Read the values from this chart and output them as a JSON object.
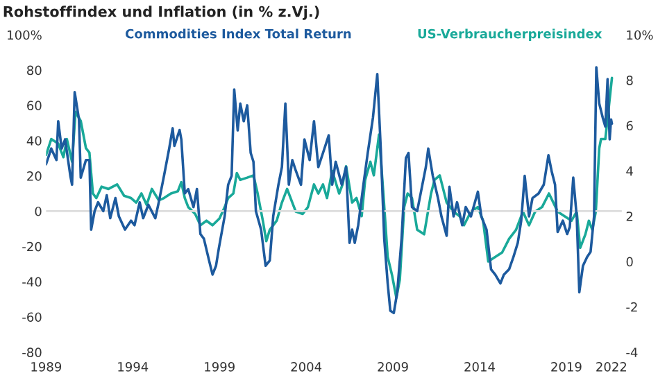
{
  "chart_data": {
    "type": "line",
    "title": "Rohstoffindex und Inflation (in % z.Vj.)",
    "xlim": [
      1989,
      2022.2
    ],
    "xticks": [
      1989,
      1994,
      1999,
      2004,
      2009,
      2014,
      2019,
      {
        "value": 2021.6,
        "label": "2022"
      }
    ],
    "ylim": [
      -80,
      100
    ],
    "yticks": [
      -80,
      -60,
      -40,
      -20,
      0,
      20,
      40,
      60,
      80,
      {
        "value": 100,
        "label": "100%"
      }
    ],
    "y2lim": [
      -4,
      10
    ],
    "y2ticks": [
      -4,
      -2,
      0,
      2,
      4,
      6,
      8,
      {
        "value": 10,
        "label": "10%"
      }
    ],
    "ref_lines": [
      {
        "axis": "y",
        "value": 0,
        "color": "#dcdcdc"
      }
    ],
    "grid": false,
    "series": [
      {
        "name": "Commodities Index Total Return",
        "color": "#1d5a9e",
        "x": [
          1989.0,
          1989.3,
          1989.6,
          1989.7,
          1989.9,
          1990.1,
          1990.4,
          1990.5,
          1990.65,
          1990.9,
          1991.0,
          1991.3,
          1991.5,
          1991.6,
          1991.8,
          1992.0,
          1992.3,
          1992.5,
          1992.7,
          1993.0,
          1993.2,
          1993.55,
          1993.9,
          1994.1,
          1994.4,
          1994.6,
          1994.9,
          1995.3,
          1995.5,
          1995.8,
          1996.1,
          1996.3,
          1996.4,
          1996.7,
          1996.8,
          1997.0,
          1997.2,
          1997.5,
          1997.7,
          1997.9,
          1998.1,
          1998.4,
          1998.6,
          1998.8,
          1998.97,
          1999.3,
          1999.5,
          1999.7,
          1999.85,
          2000.05,
          2000.2,
          2000.4,
          2000.6,
          2000.8,
          2000.96,
          2001.1,
          2001.4,
          2001.66,
          2001.9,
          2002.1,
          2002.4,
          2002.6,
          2002.8,
          2003.0,
          2003.2,
          2003.4,
          2003.7,
          2003.9,
          2004.2,
          2004.45,
          2004.7,
          2004.97,
          2005.3,
          2005.5,
          2005.7,
          2006.05,
          2006.3,
          2006.5,
          2006.65,
          2006.8,
          2007.0,
          2007.3,
          2007.55,
          2007.85,
          2008.1,
          2008.3,
          2008.5,
          2008.7,
          2008.85,
          2009.05,
          2009.25,
          2009.5,
          2009.75,
          2009.9,
          2010.1,
          2010.4,
          2010.6,
          2010.9,
          2011.04,
          2011.3,
          2011.6,
          2011.8,
          2012.1,
          2012.26,
          2012.5,
          2012.7,
          2013.0,
          2013.2,
          2013.5,
          2013.9,
          2014.1,
          2014.4,
          2014.66,
          2014.9,
          2015.2,
          2015.4,
          2015.7,
          2015.95,
          2016.2,
          2016.4,
          2016.6,
          2016.85,
          2017.05,
          2017.4,
          2017.7,
          2017.97,
          2018.15,
          2018.35,
          2018.5,
          2018.8,
          2019.05,
          2019.2,
          2019.4,
          2019.6,
          2019.75,
          2019.96,
          2020.2,
          2020.4,
          2020.6,
          2020.73,
          2020.9,
          2021.1,
          2021.25,
          2021.38,
          2021.5,
          2021.58,
          2021.63
        ],
        "values": [
          26.6,
          35.5,
          29,
          51,
          35.5,
          40.7,
          20,
          15,
          67.5,
          52,
          19,
          29,
          29,
          -10.5,
          0,
          5,
          0,
          9,
          -4,
          7.4,
          -3,
          -10.5,
          -5.4,
          -8,
          5,
          -4,
          3.6,
          -4,
          5,
          20,
          35.5,
          47,
          37,
          46,
          40.7,
          10,
          12.5,
          2.3,
          12.5,
          -13,
          -15.6,
          -28,
          -36,
          -31,
          -20.7,
          -2.8,
          15,
          20,
          69,
          45.8,
          61,
          51,
          60,
          33,
          28,
          0,
          -10.5,
          -31,
          -28,
          -2.8,
          15,
          25,
          61,
          15,
          29,
          23,
          15,
          40.7,
          29,
          51,
          25,
          33,
          43,
          15,
          28,
          15,
          25,
          -18,
          -10.5,
          -18,
          -8,
          15,
          33,
          53,
          77.7,
          35.5,
          -15.6,
          -41,
          -56.5,
          -57.8,
          -46,
          -15.6,
          30,
          33,
          2.3,
          0,
          10,
          25,
          35.5,
          20,
          7.4,
          -3,
          -14,
          13.8,
          -3,
          5,
          -8,
          2.3,
          -3,
          11,
          -3,
          -10.5,
          -33,
          -36,
          -41,
          -36,
          -33,
          -26,
          -18,
          -5.4,
          20,
          -3,
          7.4,
          10,
          15,
          31.7,
          22.8,
          15,
          -11.8,
          -5.4,
          -13,
          -9,
          19,
          -3,
          -46,
          -31,
          -26,
          -23,
          -3,
          81.6,
          61,
          53,
          48,
          74.9,
          40.7,
          52,
          49.6
        ]
      },
      {
        "name": "US-Verbraucherpreisindex",
        "color": "#19a999",
        "axis": "y2",
        "x": [
          1989.0,
          1989.3,
          1989.7,
          1990.0,
          1990.2,
          1990.5,
          1990.7,
          1991.0,
          1991.3,
          1991.5,
          1991.7,
          1991.9,
          1992.2,
          1992.6,
          1993.1,
          1993.5,
          1993.9,
          1994.2,
          1994.5,
          1994.8,
          1995.1,
          1995.5,
          1995.8,
          1996.2,
          1996.6,
          1996.8,
          1997.0,
          1997.2,
          1997.6,
          1997.9,
          1998.25,
          1998.6,
          1999.0,
          1999.3,
          1999.5,
          1999.8,
          2000.0,
          2000.2,
          2000.6,
          2000.96,
          2001.2,
          2001.5,
          2001.7,
          2001.9,
          2002.3,
          2002.6,
          2002.9,
          2003.2,
          2003.4,
          2003.8,
          2004.1,
          2004.45,
          2004.7,
          2004.97,
          2005.2,
          2005.5,
          2005.9,
          2006.1,
          2006.3,
          2006.65,
          2006.9,
          2007.2,
          2007.4,
          2007.7,
          2007.9,
          2008.2,
          2008.45,
          2008.7,
          2008.95,
          2009.2,
          2009.4,
          2009.65,
          2009.85,
          2010.1,
          2010.4,
          2010.8,
          2011.2,
          2011.4,
          2011.7,
          2012.1,
          2012.5,
          2012.85,
          2013.1,
          2013.5,
          2013.9,
          2014.2,
          2014.5,
          2014.9,
          2015.3,
          2015.7,
          2016.1,
          2016.5,
          2016.85,
          2017.2,
          2017.6,
          2018.0,
          2018.25,
          2018.5,
          2018.9,
          2019.3,
          2019.6,
          2019.8,
          2020.1,
          2020.3,
          2020.5,
          2020.7,
          2020.9,
          2021.0,
          2021.25,
          2021.45,
          2021.63
        ],
        "values": [
          4.7,
          5.4,
          5.2,
          4.6,
          5.4,
          4.4,
          6.6,
          6.2,
          5.0,
          4.8,
          3.0,
          2.8,
          3.3,
          3.2,
          3.4,
          2.9,
          2.8,
          2.6,
          3.0,
          2.5,
          3.2,
          2.7,
          2.8,
          3.0,
          3.1,
          3.5,
          2.8,
          2.4,
          2.1,
          1.6,
          1.8,
          1.6,
          1.9,
          2.4,
          2.8,
          3.0,
          3.9,
          3.6,
          3.7,
          3.8,
          3.0,
          1.8,
          0.9,
          1.4,
          1.8,
          2.6,
          3.2,
          2.6,
          2.2,
          2.1,
          2.4,
          3.4,
          3.0,
          3.4,
          2.8,
          4.0,
          3.0,
          3.4,
          4.2,
          2.6,
          2.8,
          2.0,
          3.6,
          4.4,
          3.8,
          5.6,
          3.0,
          0.2,
          -0.6,
          -1.6,
          -0.8,
          2.4,
          3.0,
          2.8,
          1.4,
          1.2,
          3.0,
          3.6,
          3.8,
          2.6,
          2.2,
          2.0,
          1.6,
          2.2,
          2.4,
          1.8,
          0.0,
          0.2,
          0.4,
          1.0,
          1.4,
          2.2,
          1.6,
          2.2,
          2.4,
          3.0,
          2.6,
          2.2,
          2.0,
          1.8,
          2.2,
          0.6,
          1.2,
          1.8,
          1.4,
          2.2,
          5.0,
          5.4,
          5.4,
          6.8,
          8.1
        ]
      }
    ]
  }
}
